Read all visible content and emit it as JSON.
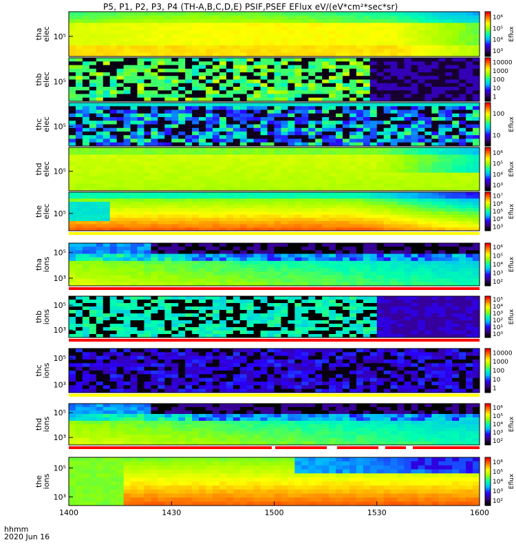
{
  "chart_data": {
    "type": "heatmap",
    "title": "P5, P1, P2, P3, P4 (TH-A,B,C,D,E) PSIF,PSEF EFlux eV/(eV*cm²*sec*sr)",
    "xaxis": {
      "ticks": [
        "1400",
        "1430",
        "1500",
        "1530",
        "1600"
      ],
      "label_line1": "hhmm",
      "label_line2": "2020 Jun 16"
    },
    "panels": [
      {
        "label_line1": "tha",
        "label_line2": "elec",
        "y_ticks": [
          "10⁵"
        ],
        "colorbar_label": "Eflux",
        "colorbar_ticks": [
          "10⁶",
          "10⁵",
          "10⁴",
          "10³"
        ],
        "pattern": "smooth_yellow",
        "quality_bar": "none"
      },
      {
        "label_line1": "thb",
        "label_line2": "elec",
        "y_ticks": [
          "10⁵"
        ],
        "colorbar_label": "",
        "colorbar_ticks": [
          "10000",
          "1000",
          "100",
          "10",
          "1"
        ],
        "pattern": "noise_green",
        "quality_bar": "none"
      },
      {
        "label_line1": "thc",
        "label_line2": "elec",
        "y_ticks": [
          "10⁵"
        ],
        "colorbar_label": "Eflux",
        "colorbar_ticks": [
          "100",
          "10"
        ],
        "pattern": "noise_blue",
        "quality_bar": "none"
      },
      {
        "label_line1": "thd",
        "label_line2": "elec",
        "y_ticks": [
          "10⁵"
        ],
        "colorbar_label": "Eflux",
        "colorbar_ticks": [
          "10⁶",
          "10⁵",
          "10⁴",
          "10³"
        ],
        "pattern": "smooth_yellow_green",
        "quality_bar": "none"
      },
      {
        "label_line1": "the",
        "label_line2": "elec",
        "y_ticks": [
          "10⁵"
        ],
        "colorbar_label": "Eflux",
        "colorbar_ticks": [
          "10⁷",
          "10⁶",
          "10⁵",
          "10⁴",
          "10³"
        ],
        "pattern": "hot_orange",
        "quality_bar": "yellow"
      },
      {
        "label_line1": "tha",
        "label_line2": "ions",
        "y_ticks": [
          "10⁵",
          "10³"
        ],
        "colorbar_label": "Eflux",
        "colorbar_ticks": [
          "10⁶",
          "10⁵",
          "10⁴",
          "10³",
          "10²"
        ],
        "pattern": "ions_green_blocks",
        "quality_bar": "red"
      },
      {
        "label_line1": "thb",
        "label_line2": "ions",
        "y_ticks": [
          "10⁵",
          "10³"
        ],
        "colorbar_label": "Eflux",
        "colorbar_ticks": [
          "10⁵",
          "10⁴",
          "10³",
          "10²",
          "10¹",
          "10⁰"
        ],
        "pattern": "ions_stripes_cyan",
        "quality_bar": "red"
      },
      {
        "label_line1": "thc",
        "label_line2": "ions",
        "y_ticks": [
          "10⁵",
          "10³"
        ],
        "colorbar_label": "",
        "colorbar_ticks": [
          "10000",
          "1000",
          "100",
          "10",
          "1"
        ],
        "pattern": "ions_stripes_blue",
        "quality_bar": "yellow"
      },
      {
        "label_line1": "thd",
        "label_line2": "ions",
        "y_ticks": [
          "10⁵",
          "10³"
        ],
        "colorbar_label": "Eflux",
        "colorbar_ticks": [
          "10⁶",
          "10⁵",
          "10⁴",
          "10³",
          "10²"
        ],
        "pattern": "ions_green_blocks",
        "quality_bar": "red_gaps"
      },
      {
        "label_line1": "the",
        "label_line2": "ions",
        "y_ticks": [
          "10⁵",
          "10³"
        ],
        "colorbar_label": "Eflux",
        "colorbar_ticks": [
          "10⁶",
          "10⁵",
          "10⁴",
          "10³",
          "10²"
        ],
        "pattern": "ions_hot",
        "quality_bar": "none"
      }
    ],
    "colormap": [
      "#000000",
      "#3a007a",
      "#2a00ff",
      "#00b8ff",
      "#00ffb0",
      "#9bff00",
      "#ffff00",
      "#ff8000",
      "#ff0000"
    ],
    "quality_colors": {
      "red": "#ff0000",
      "yellow": "#ffff00",
      "white": "#ffffff"
    }
  }
}
